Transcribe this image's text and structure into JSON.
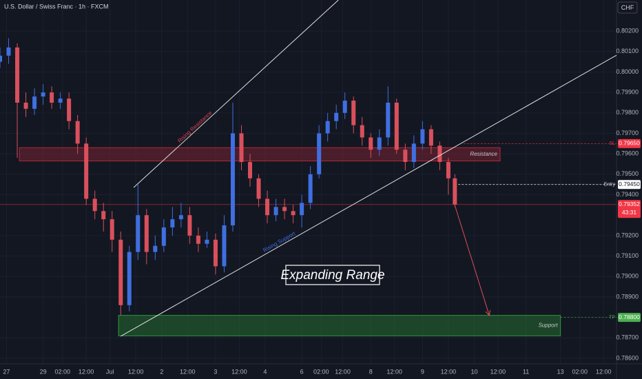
{
  "chart_data": {
    "type": "candlestick",
    "title": "U.S. Dollar / Swiss Franc · 1h · FXCM",
    "currency": "CHF",
    "x": [
      0,
      4,
      8,
      12,
      16,
      20,
      24,
      28,
      32,
      36,
      40,
      44,
      48,
      52,
      56,
      60,
      64,
      68,
      72,
      76,
      80,
      84,
      88,
      92,
      96,
      100,
      104,
      108,
      112,
      116,
      120,
      124,
      128,
      132,
      136,
      140,
      144,
      148,
      152,
      156,
      160,
      164,
      168,
      172,
      176,
      180,
      184,
      188,
      192,
      196,
      200,
      204,
      208,
      211
    ],
    "open": [
      0.8005,
      0.8008,
      0.8012,
      0.7985,
      0.7982,
      0.7988,
      0.799,
      0.7985,
      0.7987,
      0.7976,
      0.7965,
      0.7938,
      0.7932,
      0.7928,
      0.7918,
      0.7886,
      0.7912,
      0.793,
      0.7912,
      0.7915,
      0.7924,
      0.7928,
      0.793,
      0.792,
      0.7916,
      0.7918,
      0.7905,
      0.7925,
      0.797,
      0.7956,
      0.7948,
      0.7938,
      0.793,
      0.7934,
      0.7932,
      0.793,
      0.7936,
      0.795,
      0.797,
      0.7976,
      0.798,
      0.7986,
      0.7974,
      0.7968,
      0.7962,
      0.7968,
      0.7985,
      0.7962,
      0.7956,
      0.7965,
      0.7972,
      0.7964,
      0.7956,
      0.7948
    ],
    "high": [
      0.8012,
      0.80165,
      0.8014,
      0.799,
      0.7992,
      0.7994,
      0.7993,
      0.799,
      0.799,
      0.7979,
      0.7968,
      0.7942,
      0.7936,
      0.7932,
      0.7922,
      0.7915,
      0.7945,
      0.7933,
      0.792,
      0.7928,
      0.7934,
      0.7936,
      0.7934,
      0.7924,
      0.7922,
      0.7921,
      0.793,
      0.7985,
      0.7974,
      0.796,
      0.795,
      0.7942,
      0.7938,
      0.7938,
      0.7935,
      0.794,
      0.7954,
      0.7974,
      0.798,
      0.7984,
      0.799,
      0.7988,
      0.7978,
      0.797,
      0.7972,
      0.7993,
      0.7987,
      0.7965,
      0.7969,
      0.7976,
      0.7974,
      0.7966,
      0.7958,
      0.795
    ],
    "low": [
      0.8002,
      0.8004,
      0.7958,
      0.7978,
      0.7979,
      0.7984,
      0.7982,
      0.7982,
      0.7972,
      0.796,
      0.7935,
      0.7928,
      0.7922,
      0.7912,
      0.7881,
      0.7883,
      0.7908,
      0.7906,
      0.7908,
      0.7912,
      0.792,
      0.7924,
      0.7916,
      0.7912,
      0.7914,
      0.7901,
      0.7902,
      0.7922,
      0.7952,
      0.7944,
      0.7934,
      0.7926,
      0.7927,
      0.7928,
      0.7926,
      0.7924,
      0.7933,
      0.7948,
      0.7966,
      0.7972,
      0.7977,
      0.797,
      0.7964,
      0.7958,
      0.7959,
      0.7964,
      0.796,
      0.7952,
      0.7953,
      0.7962,
      0.796,
      0.7952,
      0.794,
      0.7934
    ],
    "close": [
      0.8008,
      0.8012,
      0.7985,
      0.7982,
      0.7988,
      0.799,
      0.7985,
      0.7987,
      0.7976,
      0.7965,
      0.7938,
      0.7932,
      0.7928,
      0.7918,
      0.7886,
      0.7912,
      0.793,
      0.7912,
      0.7915,
      0.7924,
      0.7928,
      0.793,
      0.792,
      0.7916,
      0.7918,
      0.7905,
      0.7925,
      0.797,
      0.7956,
      0.7948,
      0.7938,
      0.793,
      0.7934,
      0.7932,
      0.793,
      0.7936,
      0.795,
      0.797,
      0.7976,
      0.798,
      0.7986,
      0.7974,
      0.7968,
      0.7962,
      0.7968,
      0.7985,
      0.7962,
      0.7956,
      0.7965,
      0.7972,
      0.7964,
      0.7956,
      0.7948,
      0.79352
    ],
    "up_color": "#3f6fe0",
    "down_color": "#d9505c",
    "xlim": [
      0,
      286
    ],
    "ylim": [
      0.78573,
      0.80352
    ],
    "xticks": [
      {
        "value": 3,
        "label": "27"
      },
      {
        "value": 20,
        "label": "29"
      },
      {
        "value": 29,
        "label": "02:00"
      },
      {
        "value": 40,
        "label": "12:00"
      },
      {
        "value": 51,
        "label": "Jul"
      },
      {
        "value": 63,
        "label": "12:00"
      },
      {
        "value": 75,
        "label": "2"
      },
      {
        "value": 87,
        "label": "12:00"
      },
      {
        "value": 100,
        "label": "3"
      },
      {
        "value": 111,
        "label": "12:00"
      },
      {
        "value": 123,
        "label": "4"
      },
      {
        "value": 140,
        "label": "6"
      },
      {
        "value": 149,
        "label": "02:00"
      },
      {
        "value": 159,
        "label": "12:00"
      },
      {
        "value": 172,
        "label": "8"
      },
      {
        "value": 183,
        "label": "12:00"
      },
      {
        "value": 196,
        "label": "9"
      },
      {
        "value": 208,
        "label": "12:00"
      },
      {
        "value": 220,
        "label": "10"
      },
      {
        "value": 231,
        "label": "12:00"
      },
      {
        "value": 244,
        "label": "11"
      },
      {
        "value": 260,
        "label": "13"
      },
      {
        "value": 269,
        "label": "02:00"
      },
      {
        "value": 280,
        "label": "12:00"
      }
    ],
    "yticks": [
      {
        "value": 0.802,
        "label": "0.80200"
      },
      {
        "value": 0.801,
        "label": "0.80100"
      },
      {
        "value": 0.8,
        "label": "0.80000"
      },
      {
        "value": 0.799,
        "label": "0.79900"
      },
      {
        "value": 0.798,
        "label": "0.79800"
      },
      {
        "value": 0.797,
        "label": "0.79700"
      },
      {
        "value": 0.796,
        "label": "0.79600"
      },
      {
        "value": 0.795,
        "label": "0.79500"
      },
      {
        "value": 0.794,
        "label": "0.79400"
      },
      {
        "value": 0.792,
        "label": "0.79200"
      },
      {
        "value": 0.791,
        "label": "0.79100"
      },
      {
        "value": 0.79,
        "label": "0.79000"
      },
      {
        "value": 0.789,
        "label": "0.78900"
      },
      {
        "value": 0.787,
        "label": "0.78700"
      },
      {
        "value": 0.786,
        "label": "0.78600"
      }
    ],
    "grid": true,
    "zones": [
      {
        "label": "Resistance",
        "x": [
          9,
          232
        ],
        "range": [
          0.79565,
          0.7963
        ],
        "color": "#b2283a"
      },
      {
        "label": "Support",
        "x": [
          55,
          260
        ],
        "range": [
          0.7871,
          0.7881
        ],
        "color": "#2e9a3a"
      }
    ],
    "trendlines": [
      {
        "label": "Rising Resistance",
        "points": [
          [
            62,
            0.79435
          ],
          [
            157,
            0.80352
          ]
        ],
        "color": "#e0e0e0",
        "label_color": "#e04050"
      },
      {
        "label": "Rising Support",
        "points": [
          [
            56,
            0.78708
          ],
          [
            286,
            0.80082
          ]
        ],
        "color": "#e0e0e0",
        "label_color": "#3f6fe0"
      }
    ],
    "levels": [
      {
        "name": "SL",
        "value": 0.7965,
        "label": "0.79650",
        "from": 215,
        "color": "#f23645"
      },
      {
        "name": "Entry",
        "value": 0.7945,
        "label": "0.79450",
        "from": 211,
        "color": "#ffffff"
      },
      {
        "value": 0.79352,
        "label": "0.79352",
        "countdown": "43:31",
        "from": 0,
        "color": "#f23645"
      },
      {
        "name": "TP",
        "value": 0.788,
        "label": "0.78800",
        "from": 260,
        "color": "#4caf50"
      }
    ],
    "arrow": {
      "from": [
        211,
        0.79348
      ],
      "to": [
        227,
        0.78809
      ],
      "color": "#d9505c"
    },
    "annotation": "Expanding Range"
  }
}
